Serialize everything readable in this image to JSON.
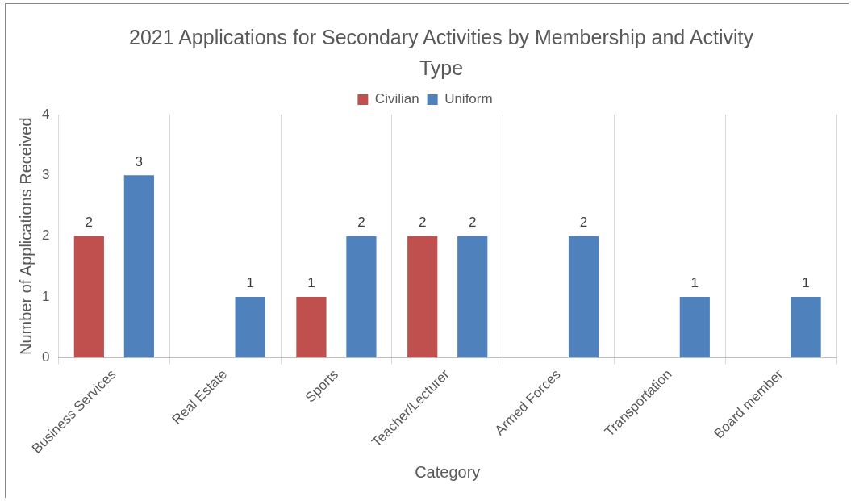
{
  "chart_data": {
    "type": "bar",
    "title": "2021 Applications for Secondary Activities by Membership and Activity Type",
    "xlabel": "Category",
    "ylabel": "Number of Applications Received",
    "categories": [
      "Business Services",
      "Real Estate",
      "Sports",
      "Teacher/Lecturer",
      "Armed Forces",
      "Transportation",
      "Board member"
    ],
    "series": [
      {
        "name": "Civilian",
        "color": "#c0504d",
        "values": [
          2,
          null,
          1,
          2,
          null,
          null,
          null
        ]
      },
      {
        "name": "Uniform",
        "color": "#4f81bd",
        "values": [
          3,
          1,
          2,
          2,
          2,
          1,
          1
        ]
      }
    ],
    "ylim": [
      0,
      4
    ],
    "yticks": [
      0,
      1,
      2,
      3,
      4
    ],
    "grid": "x",
    "legend": "top",
    "data_labels": true
  }
}
